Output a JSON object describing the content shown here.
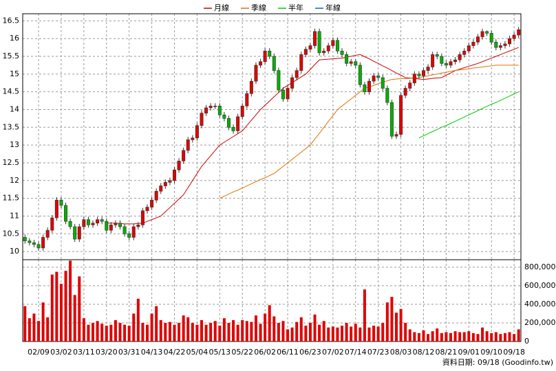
{
  "chart_data": {
    "type": "candlestick",
    "legend": "top",
    "grid": true,
    "footer": "資料日期: 09/18 (Goodinfo.tw)",
    "up_color": "#e00000",
    "down_color": "#00b000",
    "volume_color": "#e00000",
    "ylim": [
      9.77,
      16.7
    ],
    "yticks": [
      10,
      10.5,
      11,
      11.5,
      12,
      12.5,
      13,
      13.5,
      14,
      14.5,
      15,
      15.5,
      16,
      16.5
    ],
    "y2lim": [
      0,
      880000
    ],
    "y2ticks": [
      {
        "value": 0,
        "label": "0"
      },
      {
        "value": 200000,
        "label": "200,000"
      },
      {
        "value": 400000,
        "label": "400,000"
      },
      {
        "value": 600000,
        "label": "600,000"
      },
      {
        "value": 800000,
        "label": "800,000"
      }
    ],
    "categories": [
      null,
      null,
      null,
      "02/09",
      null,
      null,
      null,
      null,
      "03/02",
      null,
      null,
      null,
      null,
      "03/11",
      null,
      null,
      null,
      null,
      "03/20",
      null,
      null,
      null,
      null,
      "03/31",
      null,
      null,
      null,
      null,
      "04/13",
      null,
      null,
      null,
      null,
      "04/22",
      null,
      null,
      null,
      null,
      "05/04",
      null,
      null,
      null,
      null,
      "05/13",
      null,
      null,
      null,
      null,
      "05/22",
      null,
      null,
      null,
      null,
      "06/02",
      null,
      null,
      null,
      null,
      "06/11",
      null,
      null,
      null,
      null,
      "06/23",
      null,
      null,
      null,
      null,
      "07/02",
      null,
      null,
      null,
      null,
      "07/14",
      null,
      null,
      null,
      null,
      "07/23",
      null,
      null,
      null,
      null,
      "08/03",
      null,
      null,
      null,
      null,
      "08/12",
      null,
      null,
      null,
      null,
      "08/21",
      null,
      null,
      null,
      null,
      "09/01",
      null,
      null,
      null,
      null,
      "09/10",
      null,
      null,
      null,
      null,
      "09/18",
      null
    ],
    "open": [
      10.4,
      10.3,
      10.25,
      10.2,
      10.1,
      10.4,
      10.6,
      10.95,
      11.45,
      11.3,
      10.85,
      10.7,
      10.35,
      10.7,
      10.9,
      10.75,
      10.8,
      10.9,
      10.85,
      10.6,
      10.75,
      10.8,
      10.7,
      10.5,
      10.4,
      10.7,
      10.75,
      11.15,
      11.25,
      11.45,
      11.7,
      11.85,
      11.95,
      12.0,
      12.3,
      12.55,
      12.85,
      13.15,
      13.2,
      13.55,
      13.9,
      14.05,
      14.1,
      14.1,
      13.85,
      13.75,
      13.5,
      13.4,
      13.8,
      14.1,
      14.45,
      14.8,
      15.25,
      15.35,
      15.65,
      15.5,
      15.1,
      14.55,
      14.3,
      14.6,
      14.9,
      15.1,
      15.55,
      15.7,
      15.8,
      16.2,
      15.6,
      15.65,
      15.8,
      15.95,
      15.65,
      15.55,
      15.3,
      15.35,
      15.25,
      14.7,
      14.5,
      14.8,
      14.95,
      14.9,
      14.6,
      14.2,
      13.25,
      13.3,
      14.4,
      14.6,
      14.75,
      15.0,
      14.95,
      15.1,
      15.2,
      15.55,
      15.5,
      15.3,
      15.25,
      15.35,
      15.4,
      15.55,
      15.65,
      15.8,
      15.9,
      16.05,
      16.2,
      16.15,
      15.9,
      15.75,
      15.8,
      15.85,
      16.0,
      16.1
    ],
    "high": [
      10.48,
      10.38,
      10.33,
      10.28,
      10.48,
      10.68,
      11.03,
      11.53,
      11.53,
      11.38,
      10.93,
      10.78,
      10.78,
      10.98,
      10.98,
      10.88,
      10.98,
      10.98,
      10.93,
      10.83,
      10.88,
      10.88,
      10.78,
      10.58,
      10.78,
      10.83,
      11.23,
      11.33,
      11.53,
      11.78,
      11.93,
      12.03,
      12.08,
      12.38,
      12.63,
      12.93,
      13.23,
      13.28,
      13.63,
      13.98,
      14.13,
      14.18,
      14.18,
      14.18,
      13.93,
      13.83,
      13.58,
      13.88,
      14.18,
      14.53,
      14.88,
      15.33,
      15.43,
      15.73,
      15.73,
      15.58,
      15.18,
      14.63,
      14.68,
      14.98,
      15.18,
      15.63,
      15.78,
      15.88,
      16.28,
      16.28,
      15.73,
      15.88,
      16.03,
      16.03,
      15.73,
      15.63,
      15.43,
      15.43,
      15.33,
      14.78,
      14.88,
      15.03,
      15.03,
      14.98,
      14.68,
      14.28,
      13.38,
      14.48,
      14.68,
      14.83,
      15.08,
      15.08,
      15.18,
      15.28,
      15.63,
      15.63,
      15.58,
      15.38,
      15.43,
      15.48,
      15.63,
      15.73,
      15.88,
      15.98,
      16.13,
      16.28,
      16.23,
      16.23,
      15.98,
      15.88,
      15.93,
      16.08,
      16.18,
      16.33
    ],
    "low": [
      10.22,
      10.17,
      10.12,
      10.02,
      10.02,
      10.32,
      10.52,
      10.87,
      11.22,
      10.77,
      10.62,
      10.27,
      10.27,
      10.62,
      10.67,
      10.67,
      10.72,
      10.77,
      10.52,
      10.52,
      10.67,
      10.62,
      10.42,
      10.32,
      10.32,
      10.62,
      10.67,
      11.07,
      11.17,
      11.37,
      11.62,
      11.77,
      11.87,
      11.92,
      12.22,
      12.47,
      12.77,
      13.07,
      13.12,
      13.47,
      13.82,
      13.97,
      14.02,
      13.77,
      13.67,
      13.42,
      13.32,
      13.32,
      13.72,
      14.02,
      14.37,
      14.72,
      15.17,
      15.27,
      15.42,
      15.02,
      14.47,
      14.22,
      14.22,
      14.52,
      14.82,
      15.02,
      15.47,
      15.62,
      15.72,
      15.52,
      15.52,
      15.57,
      15.72,
      15.57,
      15.47,
      15.22,
      15.22,
      15.17,
      14.62,
      14.42,
      14.42,
      14.72,
      14.82,
      14.52,
      14.12,
      13.17,
      13.17,
      13.22,
      14.32,
      14.52,
      14.67,
      14.87,
      14.87,
      15.02,
      15.12,
      15.42,
      15.22,
      15.17,
      15.17,
      15.27,
      15.32,
      15.47,
      15.57,
      15.72,
      15.82,
      15.97,
      16.07,
      15.82,
      15.67,
      15.67,
      15.72,
      15.77,
      15.92,
      16.02
    ],
    "close": [
      10.3,
      10.25,
      10.2,
      10.1,
      10.4,
      10.6,
      10.95,
      11.45,
      11.3,
      10.85,
      10.7,
      10.35,
      10.7,
      10.9,
      10.75,
      10.8,
      10.9,
      10.85,
      10.6,
      10.75,
      10.8,
      10.7,
      10.5,
      10.4,
      10.7,
      10.75,
      11.15,
      11.25,
      11.45,
      11.7,
      11.85,
      11.95,
      12.0,
      12.3,
      12.55,
      12.85,
      13.15,
      13.2,
      13.55,
      13.9,
      14.05,
      14.1,
      14.1,
      13.85,
      13.75,
      13.5,
      13.4,
      13.8,
      14.1,
      14.45,
      14.8,
      15.25,
      15.35,
      15.65,
      15.5,
      15.1,
      14.55,
      14.3,
      14.6,
      14.9,
      15.1,
      15.55,
      15.7,
      15.8,
      16.2,
      15.6,
      15.65,
      15.8,
      15.95,
      15.65,
      15.55,
      15.3,
      15.35,
      15.25,
      14.7,
      14.5,
      14.8,
      14.95,
      14.9,
      14.6,
      14.2,
      13.25,
      13.3,
      14.4,
      14.6,
      14.75,
      15.0,
      14.95,
      15.1,
      15.2,
      15.55,
      15.5,
      15.3,
      15.25,
      15.35,
      15.4,
      15.55,
      15.65,
      15.8,
      15.9,
      16.05,
      16.2,
      16.15,
      15.9,
      15.75,
      15.8,
      15.85,
      16.0,
      16.1,
      16.25
    ],
    "volume": [
      380000,
      250000,
      300000,
      220000,
      420000,
      260000,
      720000,
      750000,
      620000,
      760000,
      870000,
      500000,
      700000,
      250000,
      180000,
      200000,
      220000,
      190000,
      170000,
      180000,
      230000,
      200000,
      180000,
      170000,
      300000,
      460000,
      200000,
      180000,
      300000,
      380000,
      230000,
      200000,
      210000,
      180000,
      200000,
      280000,
      260000,
      200000,
      180000,
      230000,
      180000,
      200000,
      220000,
      170000,
      250000,
      200000,
      230000,
      180000,
      230000,
      220000,
      210000,
      280000,
      190000,
      300000,
      390000,
      270000,
      200000,
      220000,
      130000,
      150000,
      210000,
      260000,
      170000,
      200000,
      290000,
      180000,
      220000,
      150000,
      160000,
      150000,
      170000,
      200000,
      160000,
      190000,
      150000,
      560000,
      150000,
      170000,
      160000,
      200000,
      420000,
      480000,
      310000,
      350000,
      200000,
      130000,
      100000,
      90000,
      120000,
      80000,
      110000,
      140000,
      90000,
      100000,
      90000,
      110000,
      100000,
      100000,
      110000,
      90000,
      80000,
      150000,
      110000,
      90000,
      100000,
      80000,
      90000,
      100000,
      80000,
      130000
    ],
    "series": [
      {
        "name": "月線",
        "color": "#cc0000",
        "values": [
          null,
          null,
          null,
          null,
          null,
          null,
          null,
          null,
          null,
          null,
          null,
          null,
          null,
          null,
          null,
          null,
          null,
          null,
          10.8,
          10.8,
          10.8,
          10.79,
          10.78,
          10.78,
          10.78,
          10.79,
          10.8,
          10.85,
          10.9,
          10.95,
          11.0,
          11.12,
          11.24,
          11.36,
          11.48,
          11.6,
          11.8,
          12.0,
          12.2,
          12.4,
          12.55,
          12.7,
          12.85,
          13.0,
          13.08,
          13.16,
          13.24,
          13.32,
          13.4,
          13.55,
          13.7,
          13.85,
          14.0,
          14.12,
          14.24,
          14.36,
          14.48,
          14.6,
          14.68,
          14.76,
          14.84,
          14.92,
          15.0,
          15.13,
          15.27,
          15.4,
          15.41,
          15.42,
          15.43,
          15.44,
          15.45,
          15.48,
          15.5,
          15.53,
          15.55,
          15.49,
          15.43,
          15.36,
          15.3,
          15.23,
          15.17,
          15.1,
          15.03,
          14.97,
          14.9,
          14.89,
          14.88,
          14.86,
          14.85,
          14.86,
          14.88,
          14.89,
          14.9,
          14.97,
          15.03,
          15.1,
          15.14,
          15.18,
          15.22,
          15.26,
          15.3,
          15.35,
          15.4,
          15.45,
          15.5,
          15.55,
          15.6,
          15.65,
          15.7,
          15.75
        ]
      },
      {
        "name": "季線",
        "color": "#e07000",
        "values": [
          null,
          null,
          null,
          null,
          null,
          null,
          null,
          null,
          null,
          null,
          null,
          null,
          null,
          null,
          null,
          null,
          null,
          null,
          null,
          null,
          null,
          null,
          null,
          null,
          null,
          null,
          null,
          null,
          null,
          null,
          null,
          null,
          null,
          null,
          null,
          null,
          null,
          null,
          null,
          null,
          null,
          null,
          null,
          11.5,
          11.56,
          11.62,
          11.68,
          11.73,
          11.79,
          11.85,
          11.91,
          11.97,
          12.03,
          12.08,
          12.14,
          12.2,
          12.3,
          12.4,
          12.5,
          12.6,
          12.7,
          12.8,
          12.9,
          13.0,
          13.17,
          13.33,
          13.5,
          13.67,
          13.83,
          14.0,
          14.1,
          14.2,
          14.3,
          14.4,
          14.5,
          14.6,
          14.64,
          14.68,
          14.73,
          14.77,
          14.81,
          14.85,
          14.86,
          14.87,
          14.87,
          14.88,
          14.89,
          14.9,
          14.93,
          14.95,
          14.98,
          15.0,
          15.03,
          15.05,
          15.08,
          15.1,
          15.12,
          15.13,
          15.15,
          15.17,
          15.18,
          15.2,
          15.22,
          15.23,
          15.25,
          15.25,
          15.25,
          15.25,
          15.25,
          15.25
        ]
      },
      {
        "name": "半年",
        "color": "#00cc00",
        "values": [
          null,
          null,
          null,
          null,
          null,
          null,
          null,
          null,
          null,
          null,
          null,
          null,
          null,
          null,
          null,
          null,
          null,
          null,
          null,
          null,
          null,
          null,
          null,
          null,
          null,
          null,
          null,
          null,
          null,
          null,
          null,
          null,
          null,
          null,
          null,
          null,
          null,
          null,
          null,
          null,
          null,
          null,
          null,
          null,
          null,
          null,
          null,
          null,
          null,
          null,
          null,
          null,
          null,
          null,
          null,
          null,
          null,
          null,
          null,
          null,
          null,
          null,
          null,
          null,
          null,
          null,
          null,
          null,
          null,
          null,
          null,
          null,
          null,
          null,
          null,
          null,
          null,
          null,
          null,
          null,
          null,
          null,
          null,
          null,
          null,
          null,
          null,
          13.2,
          13.26,
          13.32,
          13.38,
          13.44,
          13.5,
          13.55,
          13.61,
          13.67,
          13.73,
          13.79,
          13.85,
          13.91,
          13.97,
          14.03,
          14.09,
          14.15,
          14.2,
          14.26,
          14.32,
          14.38,
          14.44,
          14.5
        ]
      },
      {
        "name": "年線",
        "color": "#0066cc"
      }
    ]
  }
}
